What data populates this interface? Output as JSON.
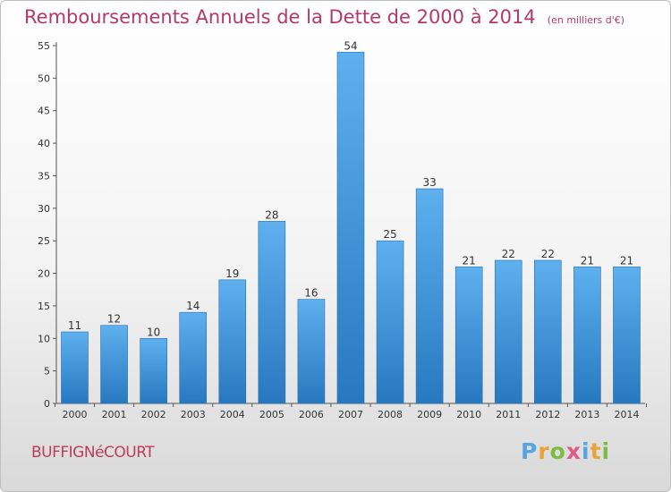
{
  "chart_data": {
    "type": "bar",
    "title": "Remboursements Annuels de la Dette de 2000 à 2014",
    "subtitle": "(en milliers d'€)",
    "categories": [
      "2000",
      "2001",
      "2002",
      "2003",
      "2004",
      "2005",
      "2006",
      "2007",
      "2008",
      "2009",
      "2010",
      "2011",
      "2012",
      "2013",
      "2014"
    ],
    "values": [
      11,
      12,
      10,
      14,
      19,
      28,
      16,
      54,
      25,
      33,
      21,
      22,
      22,
      21,
      21
    ],
    "ylim": [
      0,
      55
    ],
    "yticks": [
      0,
      5,
      10,
      15,
      20,
      25,
      30,
      35,
      40,
      45,
      50,
      55
    ],
    "grid": false,
    "bar_color": "#3d92d9",
    "data_labels": true
  },
  "commune": "BUFFIGNéCOURT",
  "brand": {
    "letters": [
      "P",
      "r",
      "o",
      "x",
      "i",
      "t",
      "i"
    ],
    "colors": [
      "#5aa4de",
      "#e8a33a",
      "#7dbb41",
      "#e05a8a",
      "#5aa4de",
      "#e8a33a",
      "#7dbb41"
    ]
  }
}
